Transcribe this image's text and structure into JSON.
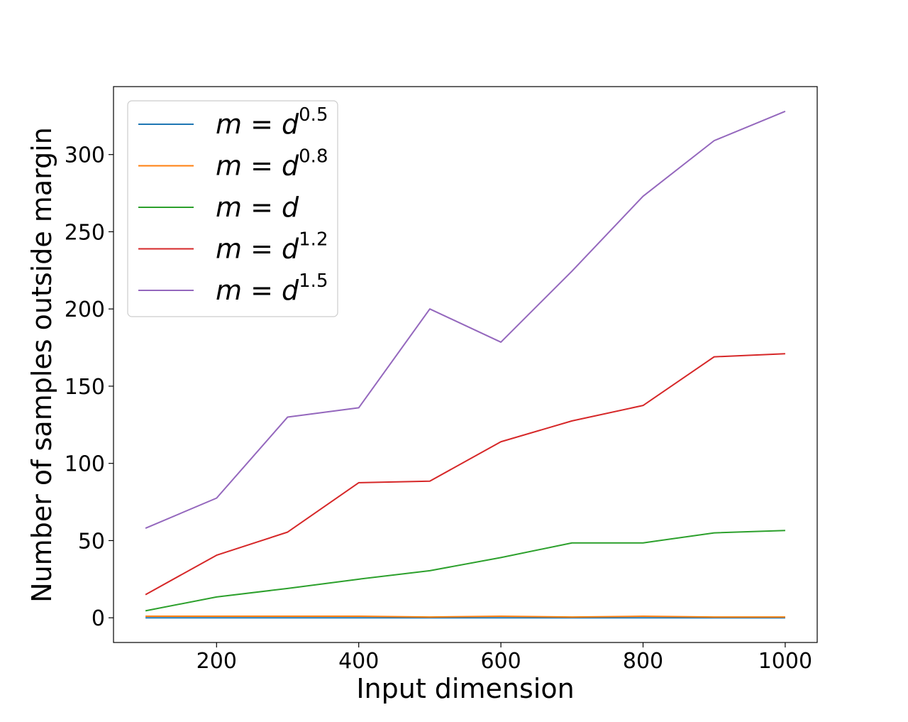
{
  "chart_data": {
    "type": "line",
    "xlabel": "Input dimension",
    "ylabel": "Number of samples outside margin",
    "xlim": [
      55,
      1045
    ],
    "ylim": [
      -16,
      344
    ],
    "xticks": [
      200,
      400,
      600,
      800,
      1000
    ],
    "yticks": [
      0,
      50,
      100,
      150,
      200,
      250,
      300
    ],
    "grid": false,
    "legend_position": "top-left",
    "x": [
      100,
      200,
      300,
      400,
      500,
      600,
      700,
      800,
      900,
      1000
    ],
    "series": [
      {
        "label_base": "m = d",
        "label_exponent": "0.5",
        "color": "#1f77b4",
        "values": [
          0,
          0,
          0,
          0,
          0,
          0,
          0,
          0,
          0,
          0
        ]
      },
      {
        "label_base": "m = d",
        "label_exponent": "0.8",
        "color": "#ff7f0e",
        "values": [
          1,
          1,
          1,
          1,
          0.5,
          1,
          0.5,
          1,
          0.5,
          0.5
        ]
      },
      {
        "label_base": "m = d",
        "label_exponent": "",
        "color": "#2ca02c",
        "values": [
          4.5,
          13.5,
          19,
          25,
          30.5,
          39,
          48.5,
          48.5,
          55,
          56.5
        ]
      },
      {
        "label_base": "m = d",
        "label_exponent": "1.2",
        "color": "#d62728",
        "values": [
          15,
          40.5,
          55.5,
          87.5,
          88.5,
          114,
          127.5,
          137.5,
          169,
          171
        ]
      },
      {
        "label_base": "m = d",
        "label_exponent": "1.5",
        "color": "#9467bd",
        "values": [
          58,
          77.5,
          130,
          136,
          200,
          178.5,
          224.5,
          273,
          309,
          328
        ]
      }
    ]
  }
}
